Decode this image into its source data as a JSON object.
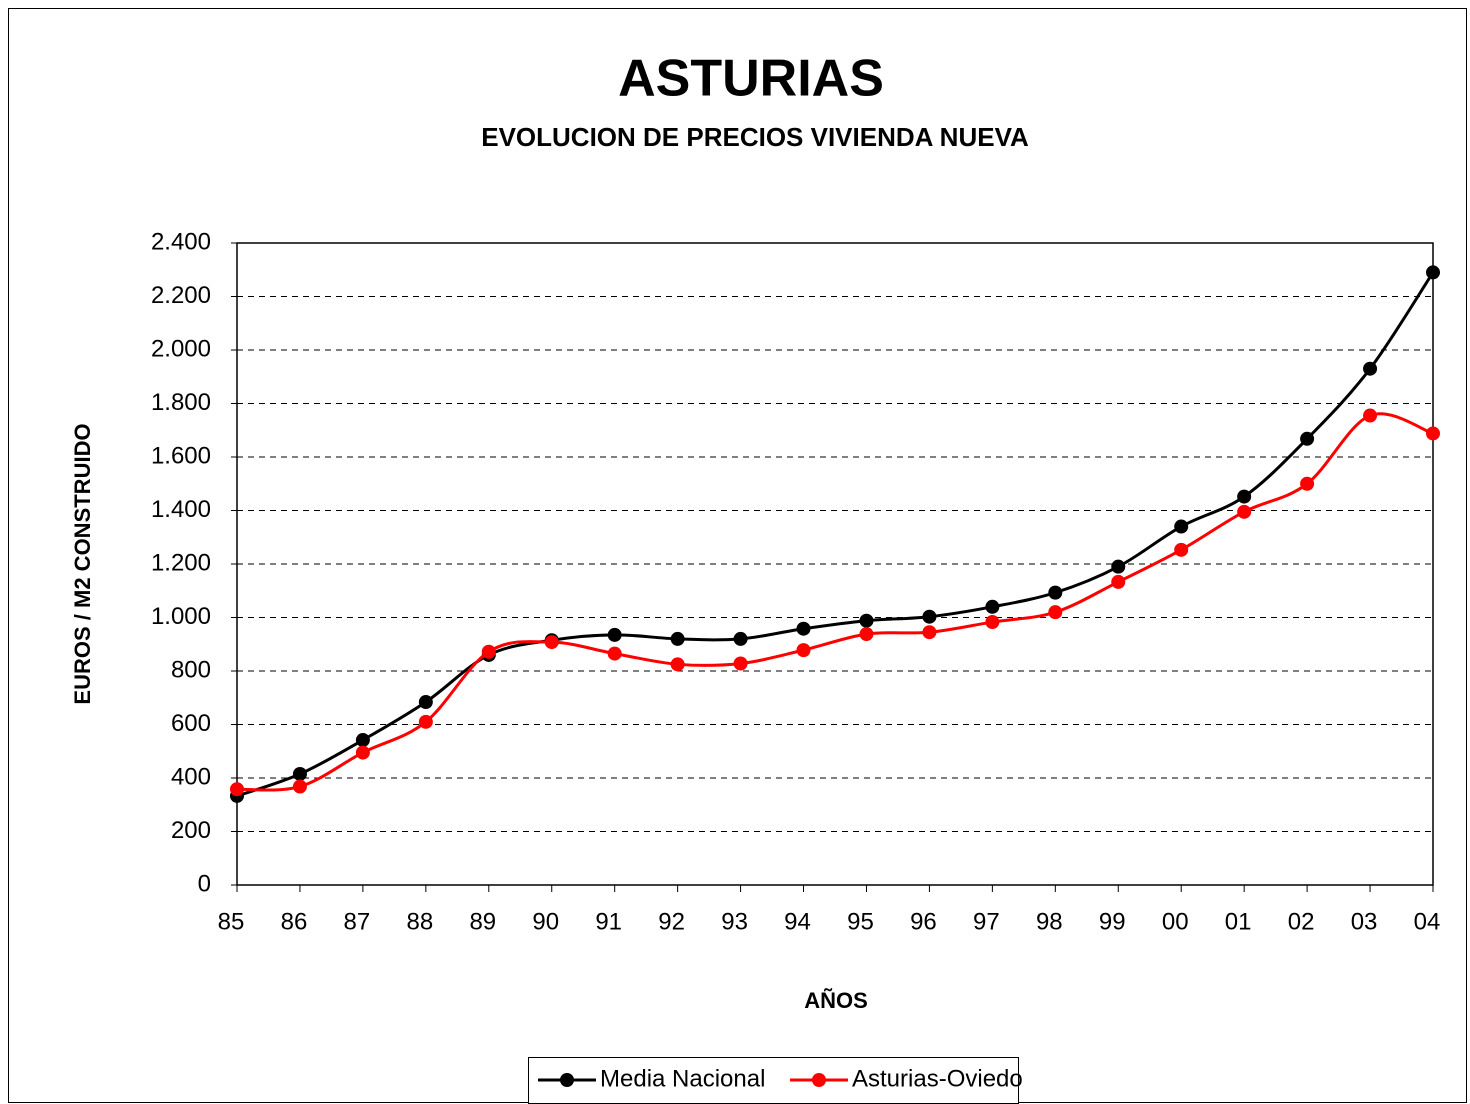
{
  "chart_data": {
    "type": "line",
    "title": "ASTURIAS",
    "subtitle": "EVOLUCION DE PRECIOS VIVIENDA NUEVA",
    "x_label": "AÑOS",
    "y_label": "EUROS / M2 CONSTRUIDO",
    "categories": [
      "85",
      "86",
      "87",
      "88",
      "89",
      "90",
      "91",
      "92",
      "93",
      "94",
      "95",
      "96",
      "97",
      "98",
      "99",
      "00",
      "01",
      "02",
      "03",
      "04"
    ],
    "series": [
      {
        "name": "Media Nacional",
        "color": "#000000",
        "values": [
          333,
          415,
          542,
          684,
          860,
          915,
          935,
          920,
          920,
          958,
          988,
          1003,
          1040,
          1093,
          1190,
          1340,
          1452,
          1668,
          1930,
          2290
        ]
      },
      {
        "name": "Asturias-Oviedo",
        "color": "#ff0000",
        "values": [
          358,
          368,
          495,
          610,
          872,
          908,
          865,
          825,
          828,
          878,
          938,
          945,
          983,
          1020,
          1133,
          1253,
          1395,
          1500,
          1755,
          1688
        ]
      }
    ],
    "ylim": [
      0,
      2400
    ],
    "yticks": [
      0,
      200,
      400,
      600,
      800,
      {
        "value": 1000,
        "label": "1.000"
      },
      {
        "value": 1200,
        "label": "1.200"
      },
      {
        "value": 1400,
        "label": "1.400"
      },
      {
        "value": 1600,
        "label": "1.600"
      },
      {
        "value": 1800,
        "label": "1.800"
      },
      {
        "value": 2000,
        "label": "2.000"
      },
      {
        "value": 2200,
        "label": "2.200"
      },
      {
        "value": 2400,
        "label": "2.400"
      }
    ],
    "grid": true,
    "smooth": true,
    "legend": "bottom"
  }
}
